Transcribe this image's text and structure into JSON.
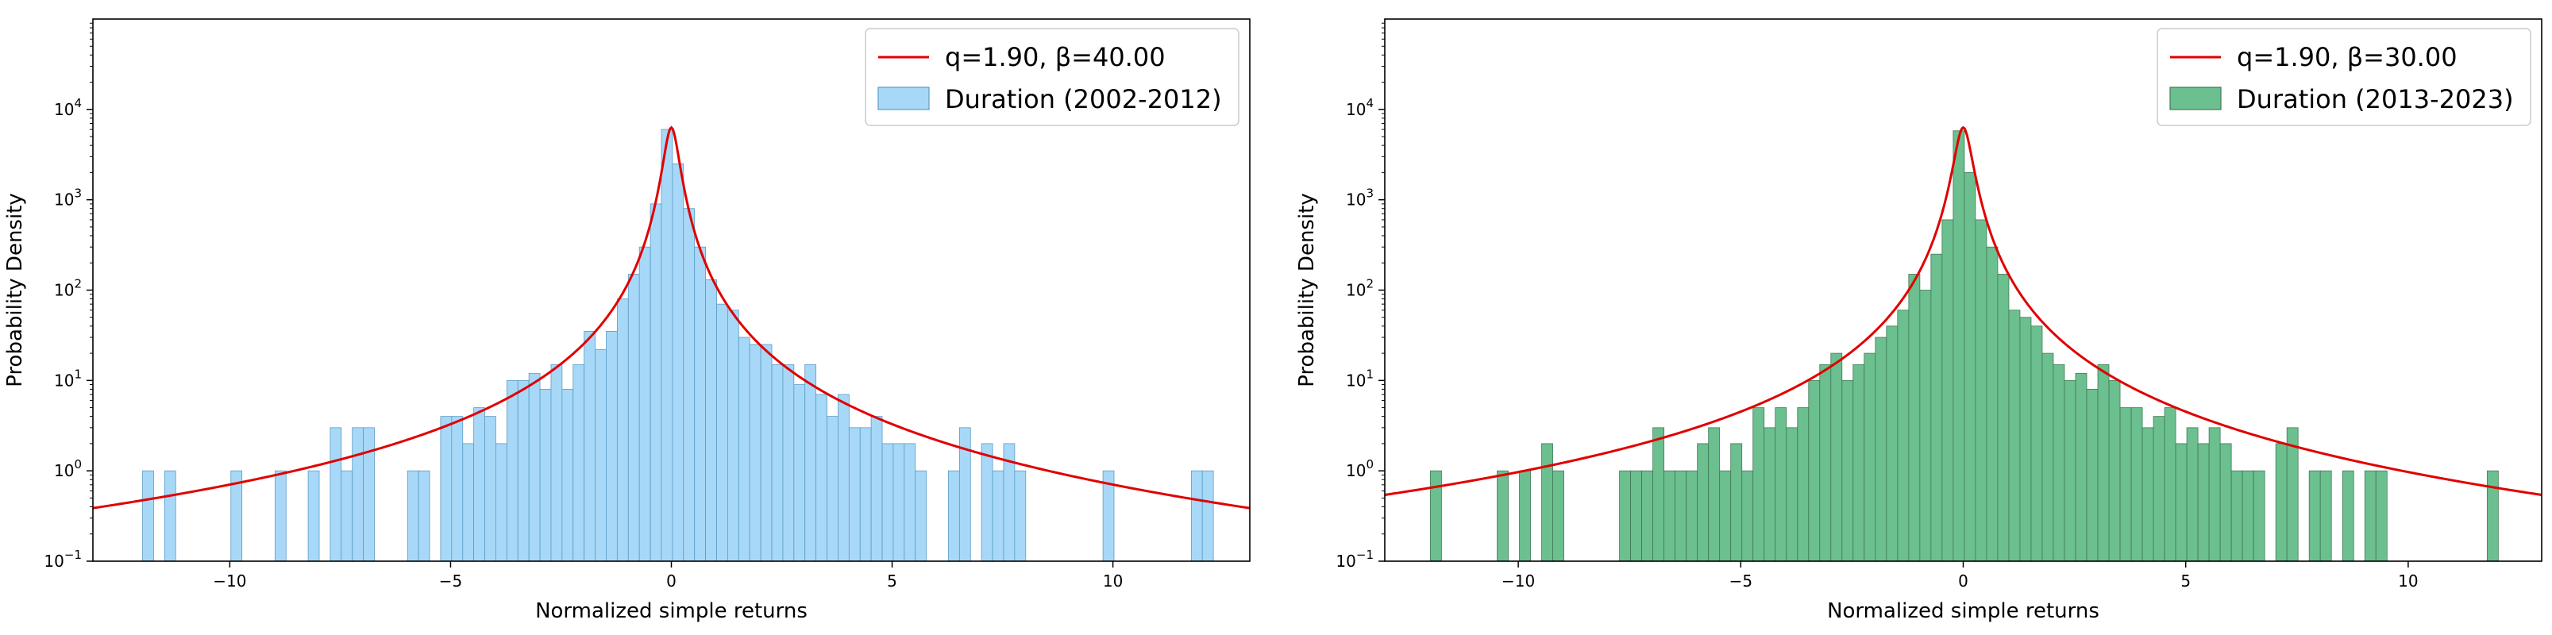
{
  "chart_data": [
    {
      "type": "bar",
      "panel": "left",
      "xlabel": "Normalized simple returns",
      "ylabel": "Probability Density",
      "xlim": [
        -13.1,
        13.1
      ],
      "yscale": "log",
      "ylim_exponent": [
        -1,
        5
      ],
      "xticks": [
        -10,
        -5,
        0,
        5,
        10
      ],
      "xtick_labels": [
        "−10",
        "−5",
        "0",
        "5",
        "10"
      ],
      "yticks": [
        -1,
        0,
        1,
        2,
        3,
        4
      ],
      "ytick_labels": [
        {
          "base": "10",
          "exp": "−1"
        },
        {
          "base": "10",
          "exp": "0"
        },
        {
          "base": "10",
          "exp": "1"
        },
        {
          "base": "10",
          "exp": "2"
        },
        {
          "base": "10",
          "exp": "3"
        },
        {
          "base": "10",
          "exp": "4"
        }
      ],
      "bar_color": "#a8d8f8",
      "bar_edge": "#5a9cc4",
      "curve_color": "#e00000",
      "legend": {
        "position": "top-right",
        "fit_label": "q=1.90, β=40.00",
        "hist_label": "Duration (2002-2012)"
      },
      "fit": {
        "q": 1.9,
        "beta": 40.0,
        "peak": 6300
      },
      "histogram": {
        "bin_width": 0.25,
        "bins": [
          [
            -11.85,
            1
          ],
          [
            -11.35,
            1
          ],
          [
            -9.85,
            1
          ],
          [
            -8.85,
            1
          ],
          [
            -8.1,
            1
          ],
          [
            -7.6,
            3
          ],
          [
            -7.35,
            1
          ],
          [
            -7.1,
            3
          ],
          [
            -6.85,
            3
          ],
          [
            -5.85,
            1
          ],
          [
            -5.6,
            1
          ],
          [
            -5.1,
            4
          ],
          [
            -4.85,
            4
          ],
          [
            -4.6,
            2
          ],
          [
            -4.35,
            5
          ],
          [
            -4.1,
            4
          ],
          [
            -3.85,
            2
          ],
          [
            -3.6,
            10
          ],
          [
            -3.35,
            10
          ],
          [
            -3.1,
            12
          ],
          [
            -2.85,
            8
          ],
          [
            -2.6,
            15
          ],
          [
            -2.35,
            8
          ],
          [
            -2.1,
            15
          ],
          [
            -1.85,
            35
          ],
          [
            -1.6,
            22
          ],
          [
            -1.35,
            35
          ],
          [
            -1.1,
            80
          ],
          [
            -0.85,
            150
          ],
          [
            -0.6,
            300
          ],
          [
            -0.35,
            900
          ],
          [
            -0.1,
            6000
          ],
          [
            0.15,
            2500
          ],
          [
            0.4,
            800
          ],
          [
            0.65,
            300
          ],
          [
            0.9,
            130
          ],
          [
            1.15,
            70
          ],
          [
            1.4,
            60
          ],
          [
            1.65,
            30
          ],
          [
            1.9,
            25
          ],
          [
            2.15,
            25
          ],
          [
            2.4,
            15
          ],
          [
            2.65,
            15
          ],
          [
            2.9,
            9
          ],
          [
            3.15,
            15
          ],
          [
            3.4,
            7
          ],
          [
            3.65,
            4
          ],
          [
            3.9,
            7
          ],
          [
            4.15,
            3
          ],
          [
            4.4,
            3
          ],
          [
            4.65,
            4
          ],
          [
            4.9,
            2
          ],
          [
            5.15,
            2
          ],
          [
            5.4,
            2
          ],
          [
            5.65,
            1
          ],
          [
            6.4,
            1
          ],
          [
            6.65,
            3
          ],
          [
            7.15,
            2
          ],
          [
            7.4,
            1
          ],
          [
            7.65,
            2
          ],
          [
            7.9,
            1
          ],
          [
            9.9,
            1
          ],
          [
            11.9,
            1
          ],
          [
            12.15,
            1
          ]
        ]
      }
    },
    {
      "type": "bar",
      "panel": "right",
      "xlabel": "Normalized simple returns",
      "ylabel": "Probability Density",
      "xlim": [
        -13.0,
        13.0
      ],
      "yscale": "log",
      "ylim_exponent": [
        -1,
        5
      ],
      "xticks": [
        -10,
        -5,
        0,
        5,
        10
      ],
      "xtick_labels": [
        "−10",
        "−5",
        "0",
        "5",
        "10"
      ],
      "yticks": [
        -1,
        0,
        1,
        2,
        3,
        4
      ],
      "ytick_labels": [
        {
          "base": "10",
          "exp": "−1"
        },
        {
          "base": "10",
          "exp": "0"
        },
        {
          "base": "10",
          "exp": "1"
        },
        {
          "base": "10",
          "exp": "2"
        },
        {
          "base": "10",
          "exp": "3"
        },
        {
          "base": "10",
          "exp": "4"
        }
      ],
      "bar_color": "#6cbf8f",
      "bar_edge": "#3f7a55",
      "curve_color": "#e00000",
      "legend": {
        "position": "top-right",
        "fit_label": "q=1.90, β=30.00",
        "hist_label": "Duration (2013-2023)"
      },
      "fit": {
        "q": 1.9,
        "beta": 30.0,
        "peak": 6300
      },
      "histogram": {
        "bin_width": 0.25,
        "bins": [
          [
            -11.85,
            1
          ],
          [
            -10.35,
            1
          ],
          [
            -9.85,
            1
          ],
          [
            -9.35,
            2
          ],
          [
            -9.1,
            1
          ],
          [
            -7.6,
            1
          ],
          [
            -7.35,
            1
          ],
          [
            -7.1,
            1
          ],
          [
            -6.85,
            3
          ],
          [
            -6.6,
            1
          ],
          [
            -6.35,
            1
          ],
          [
            -6.1,
            1
          ],
          [
            -5.85,
            2
          ],
          [
            -5.6,
            3
          ],
          [
            -5.35,
            1
          ],
          [
            -5.1,
            2
          ],
          [
            -4.85,
            1
          ],
          [
            -4.6,
            5
          ],
          [
            -4.35,
            3
          ],
          [
            -4.1,
            5
          ],
          [
            -3.85,
            3
          ],
          [
            -3.6,
            5
          ],
          [
            -3.35,
            10
          ],
          [
            -3.1,
            15
          ],
          [
            -2.85,
            20
          ],
          [
            -2.6,
            10
          ],
          [
            -2.35,
            15
          ],
          [
            -2.1,
            20
          ],
          [
            -1.85,
            30
          ],
          [
            -1.6,
            40
          ],
          [
            -1.35,
            60
          ],
          [
            -1.1,
            150
          ],
          [
            -0.85,
            100
          ],
          [
            -0.6,
            250
          ],
          [
            -0.35,
            600
          ],
          [
            -0.1,
            5800
          ],
          [
            0.15,
            2000
          ],
          [
            0.4,
            600
          ],
          [
            0.65,
            300
          ],
          [
            0.9,
            150
          ],
          [
            1.15,
            60
          ],
          [
            1.4,
            50
          ],
          [
            1.65,
            40
          ],
          [
            1.9,
            20
          ],
          [
            2.15,
            15
          ],
          [
            2.4,
            10
          ],
          [
            2.65,
            12
          ],
          [
            2.9,
            8
          ],
          [
            3.15,
            15
          ],
          [
            3.4,
            10
          ],
          [
            3.65,
            5
          ],
          [
            3.9,
            5
          ],
          [
            4.15,
            3
          ],
          [
            4.4,
            4
          ],
          [
            4.65,
            5
          ],
          [
            4.9,
            2
          ],
          [
            5.15,
            3
          ],
          [
            5.4,
            2
          ],
          [
            5.65,
            3
          ],
          [
            5.9,
            2
          ],
          [
            6.15,
            1
          ],
          [
            6.4,
            1
          ],
          [
            6.65,
            1
          ],
          [
            7.15,
            2
          ],
          [
            7.4,
            3
          ],
          [
            7.9,
            1
          ],
          [
            8.15,
            1
          ],
          [
            8.65,
            1
          ],
          [
            9.15,
            1
          ],
          [
            9.4,
            1
          ],
          [
            11.9,
            1
          ]
        ]
      }
    }
  ]
}
